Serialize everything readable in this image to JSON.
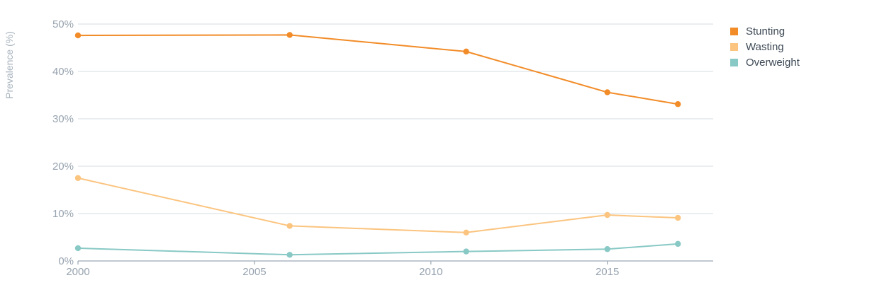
{
  "chart_data": {
    "type": "line",
    "ylabel": "Prevalence (%)",
    "ylim": [
      0,
      50
    ],
    "y_ticks": [
      0,
      10,
      20,
      30,
      40,
      50
    ],
    "y_tick_labels": [
      "0%",
      "10%",
      "20%",
      "30%",
      "40%",
      "50%"
    ],
    "xlim": [
      2000,
      2018
    ],
    "x_ticks": [
      2000,
      2005,
      2010,
      2015
    ],
    "x_tick_labels": [
      "2000",
      "2005",
      "2010",
      "2015"
    ],
    "x": [
      2000,
      2006,
      2011,
      2015,
      2017
    ],
    "grid": true,
    "legend_position": "top-right",
    "series": [
      {
        "name": "Stunting",
        "color": "#f28c28",
        "values": [
          47.6,
          47.7,
          44.2,
          35.6,
          33.1
        ]
      },
      {
        "name": "Wasting",
        "color": "#fbc47f",
        "values": [
          17.5,
          7.4,
          6.0,
          9.7,
          9.1
        ]
      },
      {
        "name": "Overweight",
        "color": "#88c9c5",
        "values": [
          2.7,
          1.3,
          2.0,
          2.5,
          3.6
        ]
      }
    ]
  }
}
